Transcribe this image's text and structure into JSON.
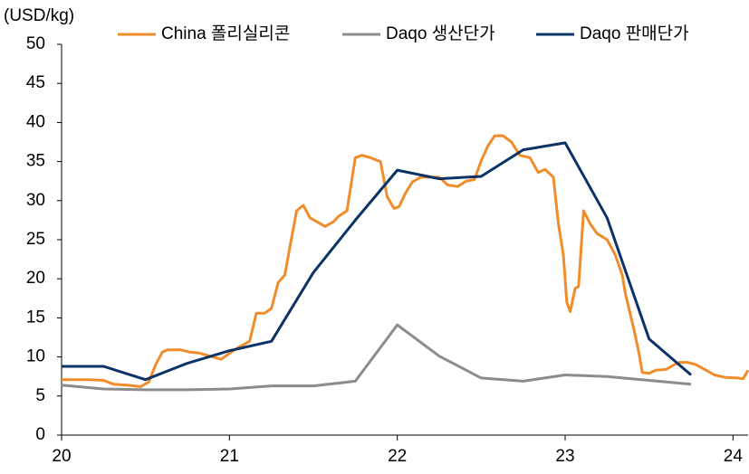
{
  "chart_data": {
    "type": "line",
    "y_label": "(USD/kg)",
    "xlim": [
      20,
      24.09
    ],
    "xticks": [
      20,
      21,
      22,
      23,
      24
    ],
    "ylim": [
      0,
      50
    ],
    "yticks": [
      0,
      5,
      10,
      15,
      20,
      25,
      30,
      35,
      40,
      45,
      50
    ],
    "grid": false,
    "legend": "top",
    "series": [
      {
        "name": "China 폴리실리콘",
        "color": "#f08c2a",
        "x": [
          20.0,
          20.17,
          20.25,
          20.31,
          20.39,
          20.47,
          20.52,
          20.56,
          20.6,
          20.63,
          20.71,
          20.77,
          20.82,
          20.9,
          20.95,
          21.01,
          21.06,
          21.12,
          21.16,
          21.21,
          21.25,
          21.29,
          21.33,
          21.36,
          21.4,
          21.44,
          21.48,
          21.52,
          21.57,
          21.62,
          21.65,
          21.7,
          21.75,
          21.79,
          21.84,
          21.9,
          21.94,
          21.98,
          22.01,
          22.05,
          22.09,
          22.14,
          22.19,
          22.25,
          22.3,
          22.36,
          22.41,
          22.46,
          22.5,
          22.54,
          22.58,
          22.63,
          22.68,
          22.73,
          22.79,
          22.84,
          22.88,
          22.93,
          22.96,
          22.99,
          23.01,
          23.03,
          23.06,
          23.08,
          23.11,
          23.15,
          23.19,
          23.25,
          23.3,
          23.34,
          23.36,
          23.41,
          23.44,
          23.46,
          23.5,
          23.54,
          23.6,
          23.65,
          23.68,
          23.73,
          23.78,
          23.84,
          23.89,
          23.95,
          24.03,
          24.06,
          24.09
        ],
        "values": [
          7.1,
          7.1,
          7.0,
          6.5,
          6.4,
          6.2,
          6.8,
          9.0,
          10.6,
          10.9,
          10.9,
          10.6,
          10.5,
          10.0,
          9.7,
          10.6,
          11.3,
          12.0,
          15.6,
          15.6,
          16.2,
          19.5,
          20.5,
          24.0,
          28.7,
          29.4,
          27.8,
          27.3,
          26.7,
          27.3,
          28.0,
          28.7,
          35.5,
          35.8,
          35.5,
          35.0,
          30.5,
          29.0,
          29.2,
          31.0,
          32.4,
          33.0,
          33.0,
          33.0,
          32.0,
          31.8,
          32.5,
          32.7,
          35.1,
          37.0,
          38.3,
          38.3,
          37.5,
          35.8,
          35.5,
          33.6,
          34.0,
          33.0,
          27.0,
          23.0,
          17.0,
          15.8,
          18.8,
          19.0,
          28.7,
          27.0,
          25.8,
          25.0,
          23.0,
          20.5,
          18.0,
          13.5,
          10.5,
          8.0,
          7.9,
          8.3,
          8.4,
          9.0,
          9.3,
          9.3,
          9.0,
          8.3,
          7.7,
          7.4,
          7.3,
          7.2,
          8.3
        ]
      },
      {
        "name": "Daqo 생산단가",
        "color": "#8c8c8c",
        "x": [
          20.0,
          20.25,
          20.5,
          20.75,
          21.0,
          21.25,
          21.5,
          21.75,
          22.0,
          22.25,
          22.5,
          22.75,
          23.0,
          23.25,
          23.5,
          23.75
        ],
        "values": [
          6.4,
          5.9,
          5.8,
          5.8,
          5.9,
          6.3,
          6.3,
          6.9,
          14.1,
          10.1,
          7.3,
          6.9,
          7.7,
          7.5,
          7.0,
          6.5
        ]
      },
      {
        "name": "Daqo 판매단가",
        "color": "#0c3366",
        "x": [
          20.0,
          20.25,
          20.5,
          20.75,
          21.0,
          21.25,
          21.5,
          21.75,
          22.0,
          22.25,
          22.5,
          22.75,
          23.0,
          23.25,
          23.5,
          23.75
        ],
        "values": [
          8.8,
          8.8,
          7.1,
          9.2,
          10.8,
          12.0,
          20.8,
          27.5,
          33.9,
          32.8,
          33.1,
          36.5,
          37.4,
          27.8,
          12.3,
          7.7
        ]
      }
    ]
  }
}
